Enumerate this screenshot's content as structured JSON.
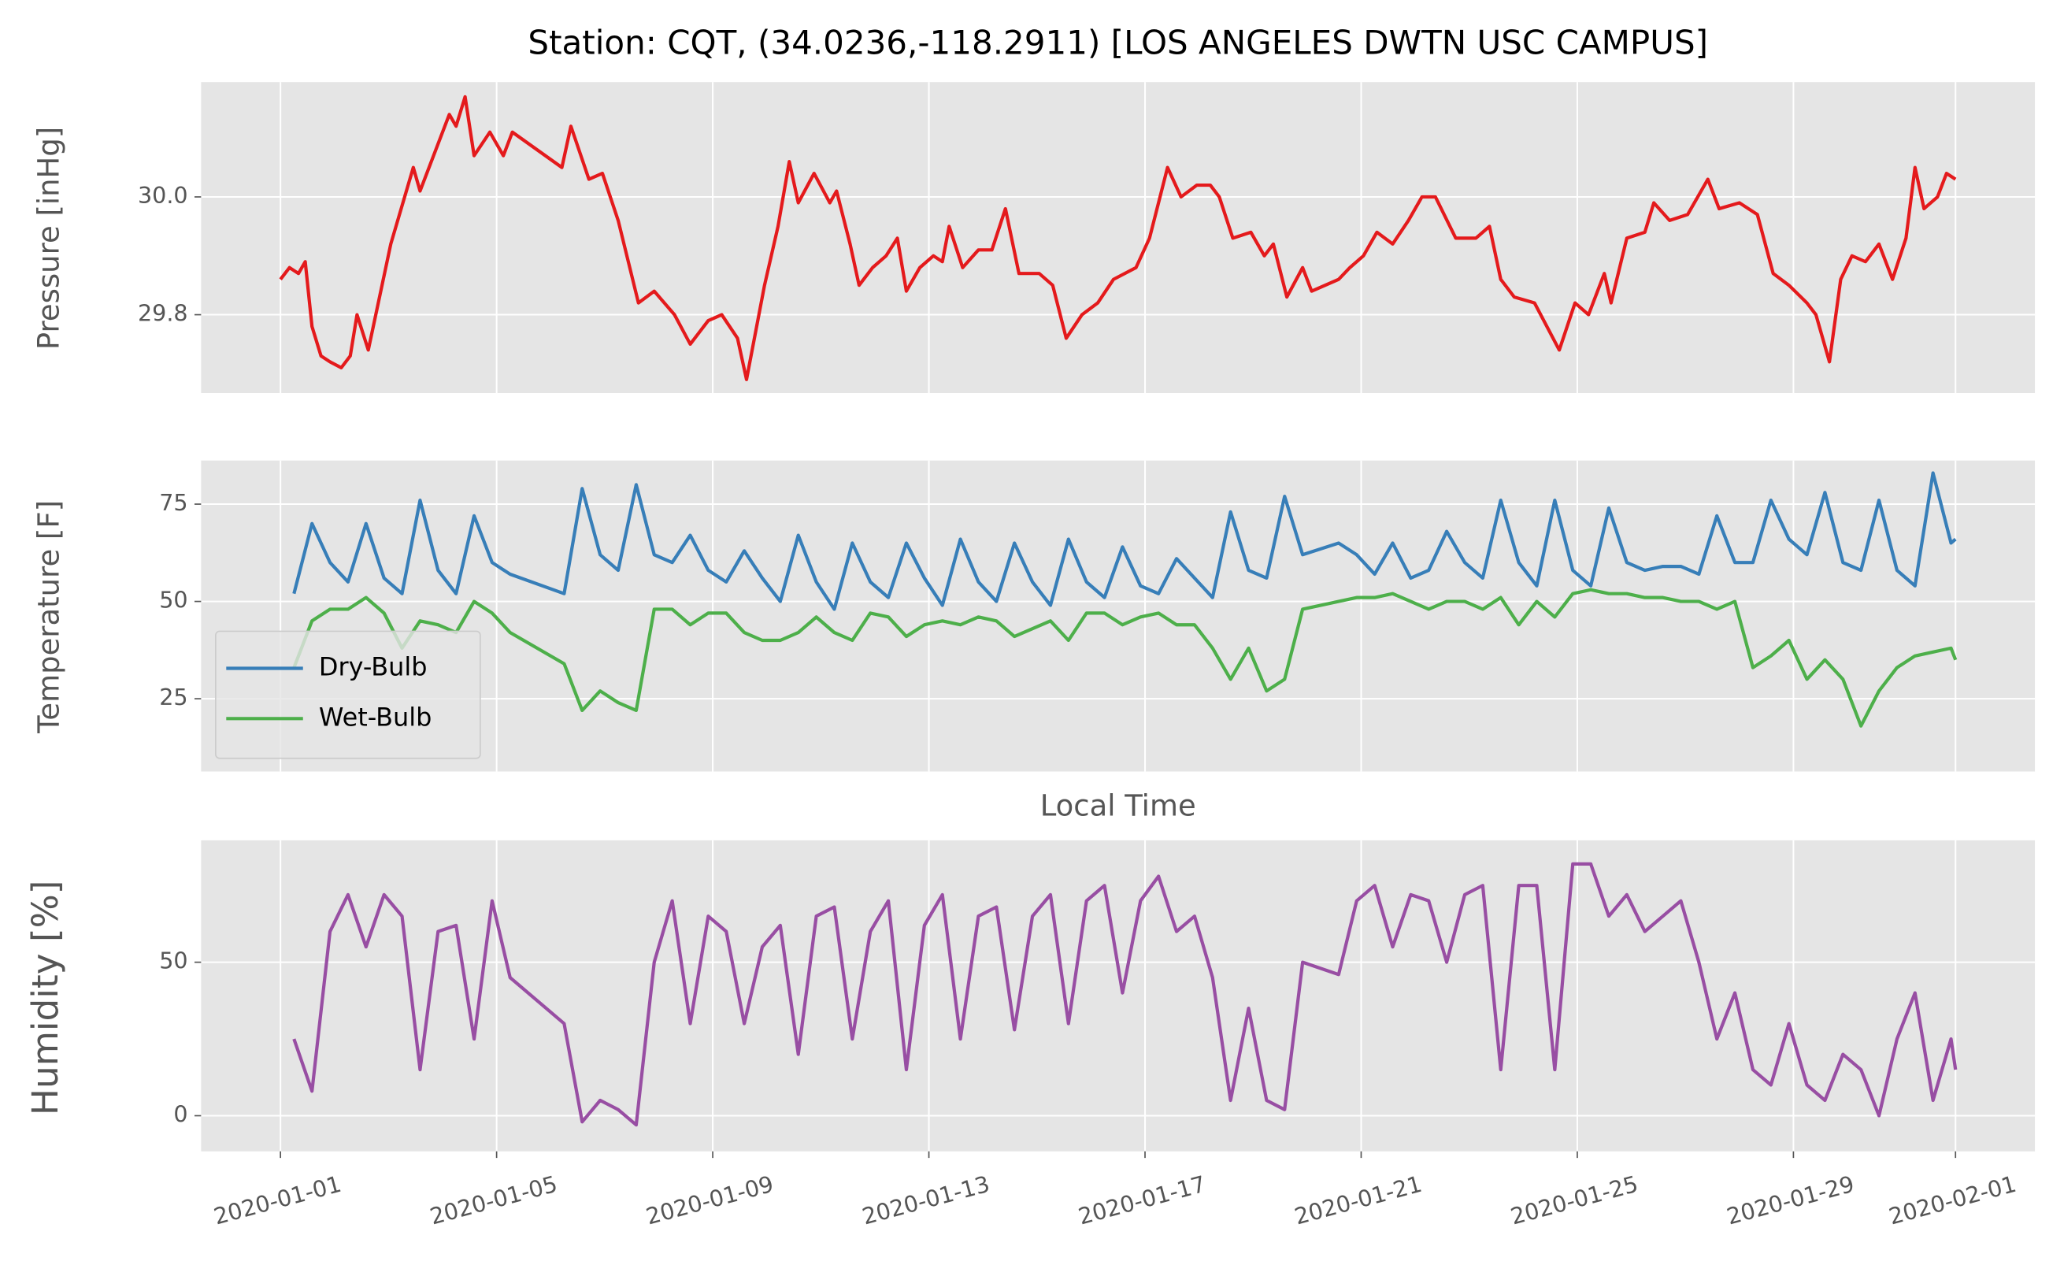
{
  "chart_data": [
    {
      "type": "line",
      "title": "Station: CQT, (34.0236,-118.2911) [LOS ANGELES DWTN USC CAMPUS]",
      "ylabel": "Pressure [inHg]",
      "xlim": [
        "2019-12-30 12:45",
        "2020-02-02 11:15"
      ],
      "ylim": [
        29.667,
        30.195
      ],
      "yticks": [
        29.8,
        {
          "value": 30,
          "label": "30.0"
        }
      ],
      "grid": true,
      "x": [
        "2020-01-01 00:00",
        "2020-01-01 04:00",
        "2020-01-01 08:00",
        "2020-01-01 11:00",
        "2020-01-01 14:00",
        "2020-01-01 18:00",
        "2020-01-01 22:00",
        "2020-01-02 03:00",
        "2020-01-02 07:00",
        "2020-01-02 10:00",
        "2020-01-02 15:00",
        "2020-01-03 01:00",
        "2020-01-03 11:00",
        "2020-01-03 14:00",
        "2020-01-03 21:00",
        "2020-01-04 03:00",
        "2020-01-04 06:00",
        "2020-01-04 10:00",
        "2020-01-04 14:00",
        "2020-01-04 21:00",
        "2020-01-05 03:00",
        "2020-01-05 07:00",
        "2020-01-06 05:00",
        "2020-01-06 09:00",
        "2020-01-06 17:00",
        "2020-01-06 23:00",
        "2020-01-07 06:00",
        "2020-01-07 15:00",
        "2020-01-07 22:00",
        "2020-01-08 07:00",
        "2020-01-08 14:00",
        "2020-01-08 22:00",
        "2020-01-09 04:00",
        "2020-01-09 11:00",
        "2020-01-09 15:00",
        "2020-01-09 23:00",
        "2020-01-10 05:00",
        "2020-01-10 10:00",
        "2020-01-10 14:00",
        "2020-01-10 21:00",
        "2020-01-11 04:00",
        "2020-01-11 07:00",
        "2020-01-11 13:00",
        "2020-01-11 17:00",
        "2020-01-11 23:00",
        "2020-01-12 05:00",
        "2020-01-12 10:00",
        "2020-01-12 14:00",
        "2020-01-12 20:00",
        "2020-01-13 02:00",
        "2020-01-13 06:00",
        "2020-01-13 09:00",
        "2020-01-13 15:00",
        "2020-01-13 22:00",
        "2020-01-14 04:00",
        "2020-01-14 10:00",
        "2020-01-14 16:00",
        "2020-01-15 01:00",
        "2020-01-15 07:00",
        "2020-01-15 13:00",
        "2020-01-15 20:00",
        "2020-01-16 03:00",
        "2020-01-16 10:00",
        "2020-01-16 20:00",
        "2020-01-17 02:00",
        "2020-01-17 10:00",
        "2020-01-17 16:00",
        "2020-01-17 23:00",
        "2020-01-18 05:00",
        "2020-01-18 09:00",
        "2020-01-18 15:00",
        "2020-01-18 23:00",
        "2020-01-19 05:00",
        "2020-01-19 09:00",
        "2020-01-19 15:00",
        "2020-01-19 22:00",
        "2020-01-20 02:00",
        "2020-01-20 14:00",
        "2020-01-20 19:00",
        "2020-01-21 01:00",
        "2020-01-21 07:00",
        "2020-01-21 14:00",
        "2020-01-21 21:00",
        "2020-01-22 03:00",
        "2020-01-22 09:00",
        "2020-01-22 18:00",
        "2020-01-23 03:00",
        "2020-01-23 09:00",
        "2020-01-23 14:00",
        "2020-01-23 20:00",
        "2020-01-24 05:00",
        "2020-01-24 16:00",
        "2020-01-24 23:00",
        "2020-01-25 05:00",
        "2020-01-25 12:00",
        "2020-01-25 15:00",
        "2020-01-25 22:00",
        "2020-01-26 06:00",
        "2020-01-26 10:00",
        "2020-01-26 17:00",
        "2020-01-27 01:00",
        "2020-01-27 10:00",
        "2020-01-27 15:00",
        "2020-01-28 00:00",
        "2020-01-28 08:00",
        "2020-01-28 15:00",
        "2020-01-28 22:00",
        "2020-01-29 06:00",
        "2020-01-29 10:00",
        "2020-01-29 16:00",
        "2020-01-29 21:00",
        "2020-01-30 02:00",
        "2020-01-30 08:00",
        "2020-01-30 14:00",
        "2020-01-30 20:00",
        "2020-01-31 02:00",
        "2020-01-31 06:00",
        "2020-01-31 10:00",
        "2020-01-31 16:00",
        "2020-01-31 20:00",
        "2020-02-01 00:00"
      ],
      "series": [
        {
          "name": "Pressure",
          "color": "#e41a1c",
          "values": [
            29.86,
            29.88,
            29.87,
            29.89,
            29.78,
            29.73,
            29.72,
            29.71,
            29.73,
            29.8,
            29.74,
            29.92,
            30.05,
            30.01,
            30.08,
            30.14,
            30.12,
            30.17,
            30.07,
            30.11,
            30.07,
            30.11,
            30.05,
            30.12,
            30.03,
            30.04,
            29.96,
            29.82,
            29.84,
            29.8,
            29.75,
            29.79,
            29.8,
            29.76,
            29.69,
            29.85,
            29.95,
            30.06,
            29.99,
            30.04,
            29.99,
            30.01,
            29.92,
            29.85,
            29.88,
            29.9,
            29.93,
            29.84,
            29.88,
            29.9,
            29.89,
            29.95,
            29.88,
            29.91,
            29.91,
            29.98,
            29.87,
            29.87,
            29.85,
            29.76,
            29.8,
            29.82,
            29.86,
            29.88,
            29.93,
            30.05,
            30.0,
            30.02,
            30.02,
            30.0,
            29.93,
            29.94,
            29.9,
            29.92,
            29.83,
            29.88,
            29.84,
            29.86,
            29.88,
            29.9,
            29.94,
            29.92,
            29.96,
            30.0,
            30.0,
            29.93,
            29.93,
            29.95,
            29.86,
            29.83,
            29.82,
            29.74,
            29.82,
            29.8,
            29.87,
            29.82,
            29.93,
            29.94,
            29.99,
            29.96,
            29.97,
            30.03,
            29.98,
            29.99,
            29.97,
            29.87,
            29.85,
            29.82,
            29.8,
            29.72,
            29.86,
            29.9,
            29.89,
            29.92,
            29.86,
            29.93,
            30.05,
            29.98,
            30.0,
            30.04,
            30.03
          ]
        }
      ]
    },
    {
      "type": "line",
      "ylabel": "Temperature [F]",
      "xlabel": "Local Time",
      "legend": "lower left",
      "xlim": [
        "2019-12-30 12:45",
        "2020-02-02 11:15"
      ],
      "ylim": [
        6.3,
        86.2
      ],
      "yticks": [
        25,
        50,
        75
      ],
      "grid": true,
      "x": [
        "2020-01-01 06:00",
        "2020-01-01 14:00",
        "2020-01-01 22:00",
        "2020-01-02 06:00",
        "2020-01-02 14:00",
        "2020-01-02 22:00",
        "2020-01-03 06:00",
        "2020-01-03 14:00",
        "2020-01-03 22:00",
        "2020-01-04 06:00",
        "2020-01-04 14:00",
        "2020-01-04 22:00",
        "2020-01-05 06:00",
        "2020-01-06 06:00",
        "2020-01-06 14:00",
        "2020-01-06 22:00",
        "2020-01-07 06:00",
        "2020-01-07 14:00",
        "2020-01-07 22:00",
        "2020-01-08 06:00",
        "2020-01-08 14:00",
        "2020-01-08 22:00",
        "2020-01-09 06:00",
        "2020-01-09 14:00",
        "2020-01-09 22:00",
        "2020-01-10 06:00",
        "2020-01-10 14:00",
        "2020-01-10 22:00",
        "2020-01-11 06:00",
        "2020-01-11 14:00",
        "2020-01-11 22:00",
        "2020-01-12 06:00",
        "2020-01-12 14:00",
        "2020-01-12 22:00",
        "2020-01-13 06:00",
        "2020-01-13 14:00",
        "2020-01-13 22:00",
        "2020-01-14 06:00",
        "2020-01-14 14:00",
        "2020-01-14 22:00",
        "2020-01-15 06:00",
        "2020-01-15 14:00",
        "2020-01-15 22:00",
        "2020-01-16 06:00",
        "2020-01-16 14:00",
        "2020-01-16 22:00",
        "2020-01-17 06:00",
        "2020-01-17 14:00",
        "2020-01-17 22:00",
        "2020-01-18 06:00",
        "2020-01-18 14:00",
        "2020-01-18 22:00",
        "2020-01-19 06:00",
        "2020-01-19 14:00",
        "2020-01-19 22:00",
        "2020-01-20 14:00",
        "2020-01-20 22:00",
        "2020-01-21 06:00",
        "2020-01-21 14:00",
        "2020-01-21 22:00",
        "2020-01-22 06:00",
        "2020-01-22 14:00",
        "2020-01-22 22:00",
        "2020-01-23 06:00",
        "2020-01-23 14:00",
        "2020-01-23 22:00",
        "2020-01-24 06:00",
        "2020-01-24 14:00",
        "2020-01-24 22:00",
        "2020-01-25 06:00",
        "2020-01-25 14:00",
        "2020-01-25 22:00",
        "2020-01-26 06:00",
        "2020-01-26 14:00",
        "2020-01-26 22:00",
        "2020-01-27 06:00",
        "2020-01-27 14:00",
        "2020-01-27 22:00",
        "2020-01-28 06:00",
        "2020-01-28 14:00",
        "2020-01-28 22:00",
        "2020-01-29 06:00",
        "2020-01-29 14:00",
        "2020-01-29 22:00",
        "2020-01-30 06:00",
        "2020-01-30 14:00",
        "2020-01-30 22:00",
        "2020-01-31 06:00",
        "2020-01-31 14:00",
        "2020-01-31 22:00",
        "2020-02-01 00:00"
      ],
      "series": [
        {
          "name": "Dry-Bulb",
          "color": "#377eb8",
          "values": [
            52,
            70,
            60,
            55,
            70,
            56,
            52,
            76,
            58,
            52,
            72,
            60,
            57,
            52,
            79,
            62,
            58,
            80,
            62,
            60,
            67,
            58,
            55,
            63,
            56,
            50,
            67,
            55,
            48,
            65,
            55,
            51,
            65,
            56,
            49,
            66,
            55,
            50,
            65,
            55,
            49,
            66,
            55,
            51,
            64,
            54,
            52,
            61,
            56,
            51,
            73,
            58,
            56,
            77,
            62,
            65,
            62,
            57,
            65,
            56,
            58,
            68,
            60,
            56,
            76,
            60,
            54,
            76,
            58,
            54,
            74,
            60,
            58,
            59,
            59,
            57,
            72,
            60,
            60,
            76,
            66,
            62,
            78,
            60,
            58,
            76,
            58,
            54,
            83,
            65,
            66
          ]
        },
        {
          "name": "Wet-Bulb",
          "color": "#4daf4a",
          "values": [
            33,
            45,
            48,
            48,
            51,
            47,
            38,
            45,
            44,
            42,
            50,
            47,
            42,
            34,
            22,
            27,
            24,
            22,
            48,
            48,
            44,
            47,
            47,
            42,
            40,
            40,
            42,
            46,
            42,
            40,
            47,
            46,
            41,
            44,
            45,
            44,
            46,
            45,
            41,
            43,
            45,
            40,
            47,
            47,
            44,
            46,
            47,
            44,
            44,
            38,
            30,
            38,
            27,
            30,
            48,
            50,
            51,
            51,
            52,
            50,
            48,
            50,
            50,
            48,
            51,
            44,
            50,
            46,
            52,
            53,
            52,
            52,
            51,
            51,
            50,
            50,
            48,
            50,
            33,
            36,
            40,
            30,
            35,
            30,
            18,
            27,
            33,
            36,
            37,
            38,
            35
          ]
        }
      ]
    },
    {
      "type": "line",
      "ylabel": "Humidity [%]",
      "xlim": [
        "2019-12-30 12:45",
        "2020-02-02 11:15"
      ],
      "ylim": [
        -11.6,
        89.7
      ],
      "yticks": [
        0,
        50
      ],
      "grid": true,
      "xticks": [
        "2020-01-01",
        "2020-01-05",
        "2020-01-09",
        "2020-01-13",
        "2020-01-17",
        "2020-01-21",
        "2020-01-25",
        "2020-01-29",
        "2020-02-01"
      ],
      "x": [
        "2020-01-01 06:00",
        "2020-01-01 14:00",
        "2020-01-01 22:00",
        "2020-01-02 06:00",
        "2020-01-02 14:00",
        "2020-01-02 22:00",
        "2020-01-03 06:00",
        "2020-01-03 14:00",
        "2020-01-03 22:00",
        "2020-01-04 06:00",
        "2020-01-04 14:00",
        "2020-01-04 22:00",
        "2020-01-05 06:00",
        "2020-01-06 06:00",
        "2020-01-06 14:00",
        "2020-01-06 22:00",
        "2020-01-07 06:00",
        "2020-01-07 14:00",
        "2020-01-07 22:00",
        "2020-01-08 06:00",
        "2020-01-08 14:00",
        "2020-01-08 22:00",
        "2020-01-09 06:00",
        "2020-01-09 14:00",
        "2020-01-09 22:00",
        "2020-01-10 06:00",
        "2020-01-10 14:00",
        "2020-01-10 22:00",
        "2020-01-11 06:00",
        "2020-01-11 14:00",
        "2020-01-11 22:00",
        "2020-01-12 06:00",
        "2020-01-12 14:00",
        "2020-01-12 22:00",
        "2020-01-13 06:00",
        "2020-01-13 14:00",
        "2020-01-13 22:00",
        "2020-01-14 06:00",
        "2020-01-14 14:00",
        "2020-01-14 22:00",
        "2020-01-15 06:00",
        "2020-01-15 14:00",
        "2020-01-15 22:00",
        "2020-01-16 06:00",
        "2020-01-16 14:00",
        "2020-01-16 22:00",
        "2020-01-17 06:00",
        "2020-01-17 14:00",
        "2020-01-17 22:00",
        "2020-01-18 06:00",
        "2020-01-18 14:00",
        "2020-01-18 22:00",
        "2020-01-19 06:00",
        "2020-01-19 14:00",
        "2020-01-19 22:00",
        "2020-01-20 14:00",
        "2020-01-20 22:00",
        "2020-01-21 06:00",
        "2020-01-21 14:00",
        "2020-01-21 22:00",
        "2020-01-22 06:00",
        "2020-01-22 14:00",
        "2020-01-22 22:00",
        "2020-01-23 06:00",
        "2020-01-23 14:00",
        "2020-01-23 22:00",
        "2020-01-24 06:00",
        "2020-01-24 14:00",
        "2020-01-24 22:00",
        "2020-01-25 06:00",
        "2020-01-25 14:00",
        "2020-01-25 22:00",
        "2020-01-26 06:00",
        "2020-01-26 14:00",
        "2020-01-26 22:00",
        "2020-01-27 06:00",
        "2020-01-27 14:00",
        "2020-01-27 22:00",
        "2020-01-28 06:00",
        "2020-01-28 14:00",
        "2020-01-28 22:00",
        "2020-01-29 06:00",
        "2020-01-29 14:00",
        "2020-01-29 22:00",
        "2020-01-30 06:00",
        "2020-01-30 14:00",
        "2020-01-30 22:00",
        "2020-01-31 06:00",
        "2020-01-31 14:00",
        "2020-01-31 22:00",
        "2020-02-01 00:00"
      ],
      "series": [
        {
          "name": "Humidity",
          "color": "#984ea3",
          "values": [
            25,
            8,
            60,
            72,
            55,
            72,
            65,
            15,
            60,
            62,
            25,
            70,
            45,
            30,
            -2,
            5,
            2,
            -3,
            50,
            70,
            30,
            65,
            60,
            30,
            55,
            62,
            20,
            65,
            68,
            25,
            60,
            70,
            15,
            62,
            72,
            25,
            65,
            68,
            28,
            65,
            72,
            30,
            70,
            75,
            40,
            70,
            78,
            60,
            65,
            45,
            5,
            35,
            5,
            2,
            50,
            46,
            70,
            75,
            55,
            72,
            70,
            50,
            72,
            75,
            15,
            75,
            75,
            15,
            82,
            82,
            65,
            72,
            60,
            65,
            70,
            50,
            25,
            40,
            15,
            10,
            30,
            10,
            5,
            20,
            15,
            0,
            25,
            40,
            5,
            25,
            15
          ]
        }
      ]
    }
  ]
}
